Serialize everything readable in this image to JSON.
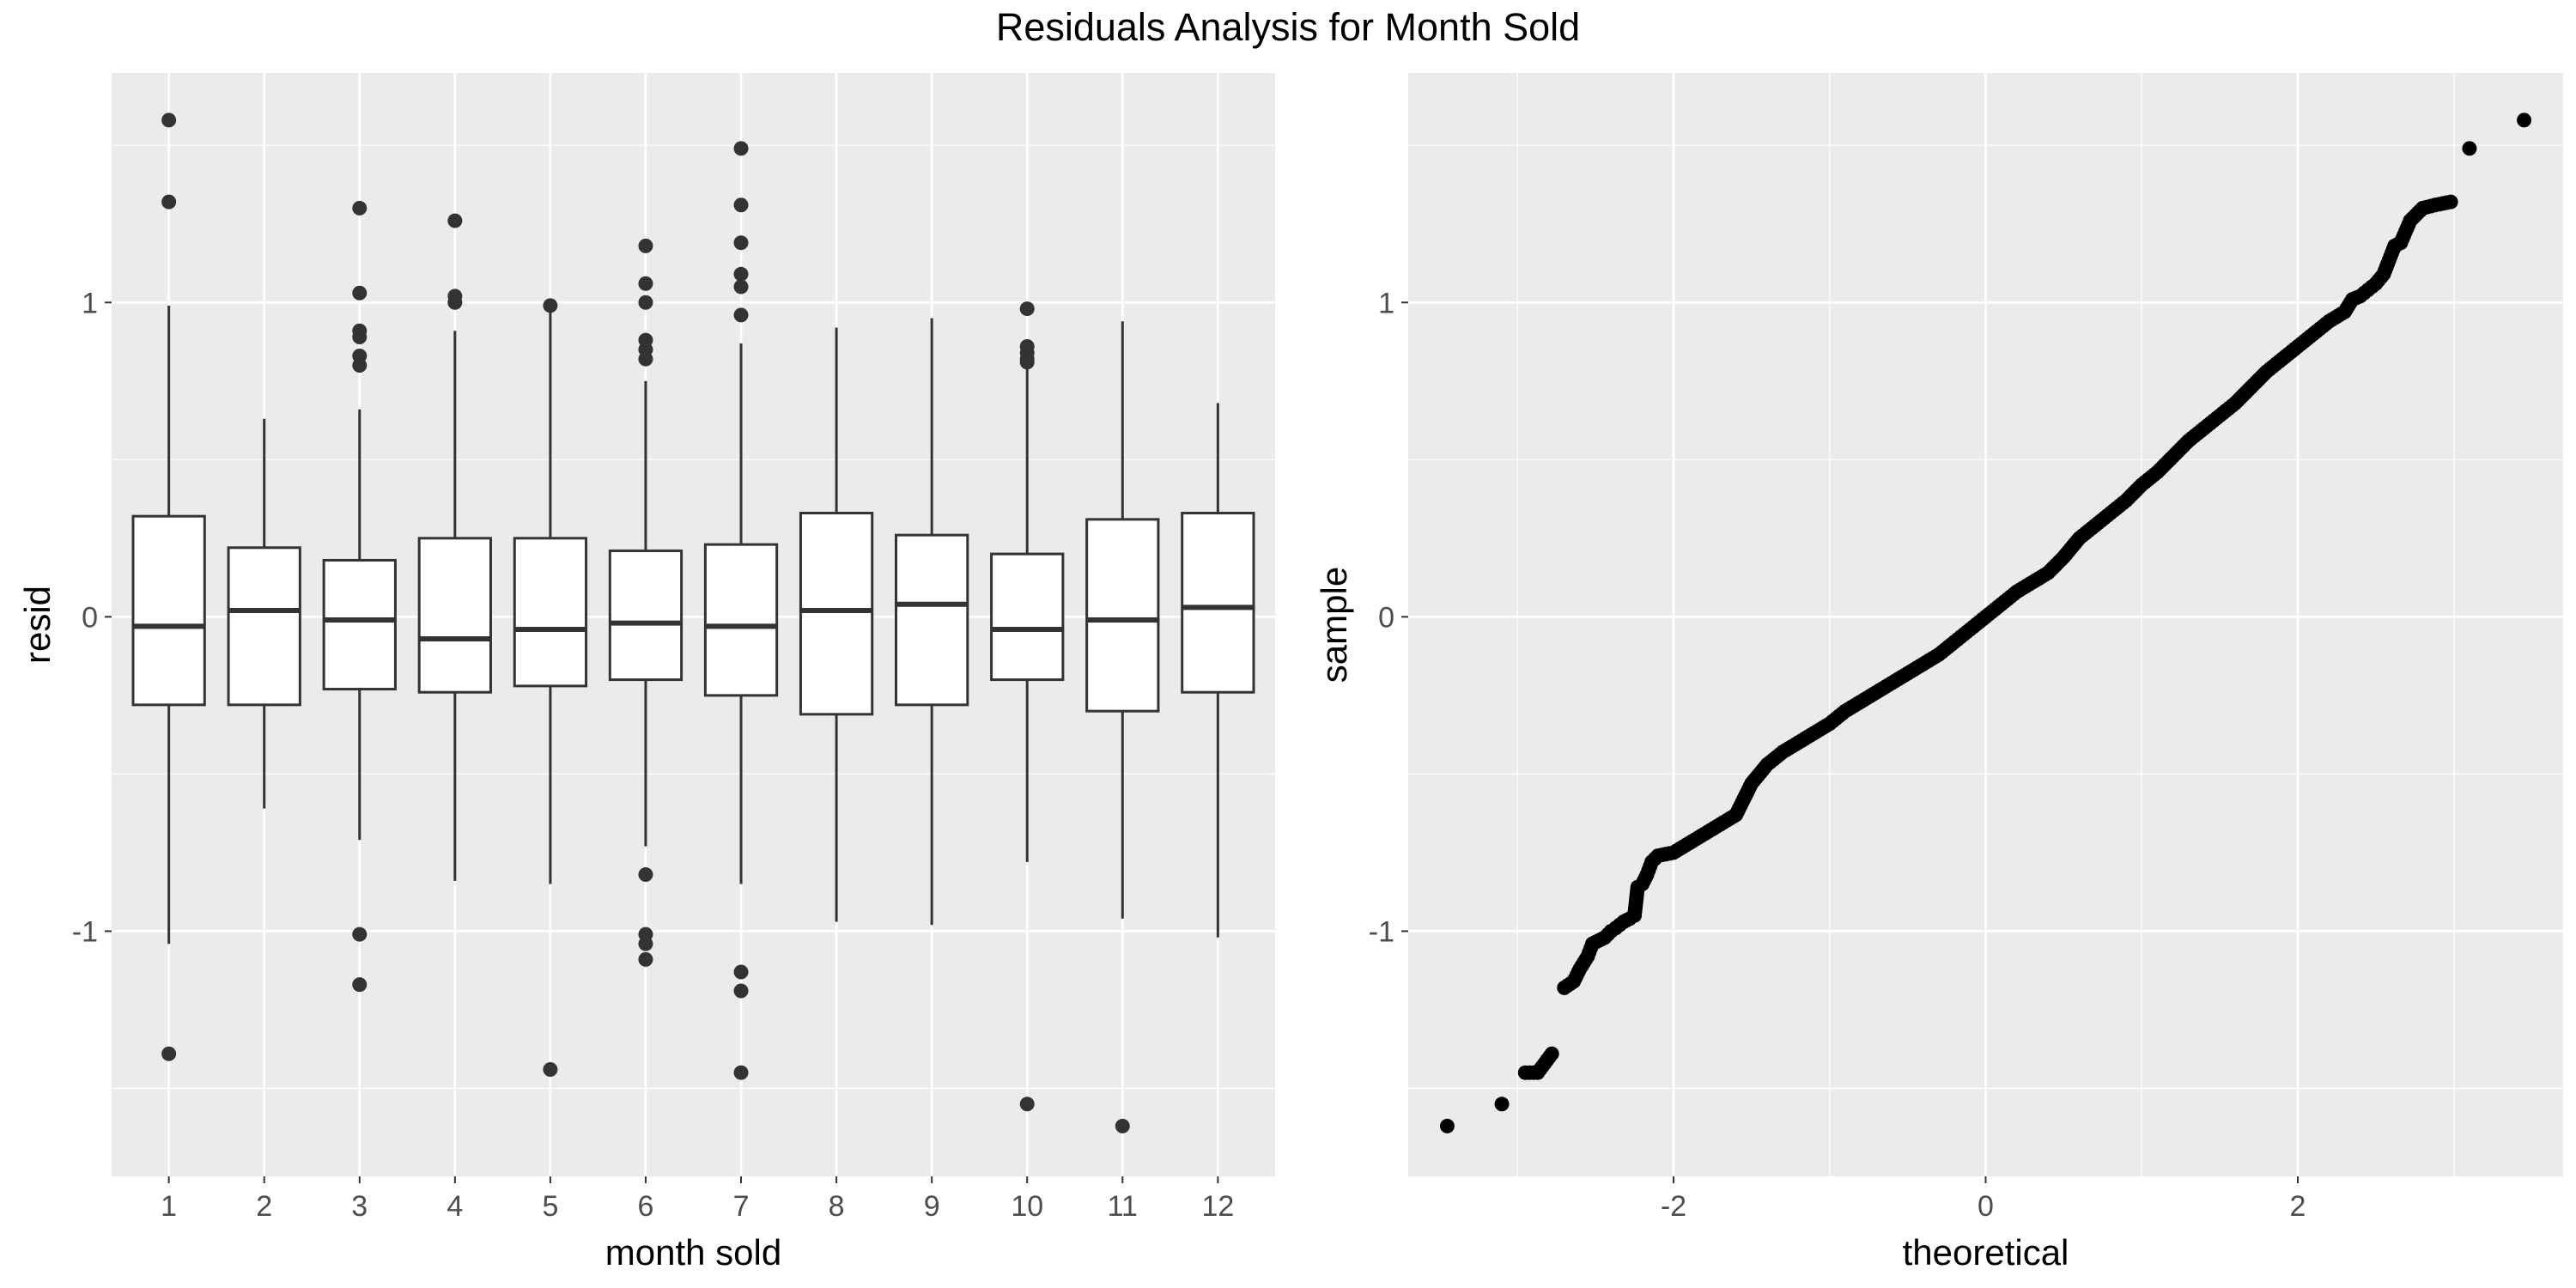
{
  "figure_title": "Residuals Analysis for Month Sold",
  "colors": {
    "panel_bg": "#ebebeb",
    "grid": "#ffffff",
    "box_fill": "#ffffff",
    "box_line": "#333333",
    "point": "#000000",
    "outlier": "#333333",
    "tick_text": "#4d4d4d"
  },
  "chart_data": [
    {
      "type": "box",
      "title": "",
      "xlabel": "month sold",
      "ylabel": "resid",
      "categories": [
        "1",
        "2",
        "3",
        "4",
        "5",
        "6",
        "7",
        "8",
        "9",
        "10",
        "11",
        "12"
      ],
      "ylim": [
        -1.78,
        1.73
      ],
      "y_ticks": [
        -1,
        0,
        1
      ],
      "y_tick_labels": [
        "-1",
        "0",
        "1"
      ],
      "grid": true,
      "boxes": [
        {
          "month": "1",
          "q1": -0.28,
          "median": -0.03,
          "q3": 0.32,
          "lower_whisker": -1.04,
          "upper_whisker": 0.99,
          "outliers": [
            1.58,
            1.32,
            -1.39
          ]
        },
        {
          "month": "2",
          "q1": -0.28,
          "median": 0.02,
          "q3": 0.22,
          "lower_whisker": -0.61,
          "upper_whisker": 0.63,
          "outliers": []
        },
        {
          "month": "3",
          "q1": -0.23,
          "median": -0.01,
          "q3": 0.18,
          "lower_whisker": -0.71,
          "upper_whisker": 0.66,
          "outliers": [
            1.3,
            1.03,
            0.91,
            0.89,
            0.83,
            0.8,
            -1.01,
            -1.17
          ]
        },
        {
          "month": "4",
          "q1": -0.24,
          "median": -0.07,
          "q3": 0.25,
          "lower_whisker": -0.84,
          "upper_whisker": 0.91,
          "outliers": [
            1.26,
            1.02,
            1.0
          ]
        },
        {
          "month": "5",
          "q1": -0.22,
          "median": -0.04,
          "q3": 0.25,
          "lower_whisker": -0.85,
          "upper_whisker": 0.97,
          "outliers": [
            0.99,
            -1.44
          ]
        },
        {
          "month": "6",
          "q1": -0.2,
          "median": -0.02,
          "q3": 0.21,
          "lower_whisker": -0.73,
          "upper_whisker": 0.75,
          "outliers": [
            1.18,
            1.06,
            1.0,
            0.88,
            0.85,
            0.82,
            -0.82,
            -1.01,
            -1.04,
            -1.09
          ]
        },
        {
          "month": "7",
          "q1": -0.25,
          "median": -0.03,
          "q3": 0.23,
          "lower_whisker": -0.85,
          "upper_whisker": 0.87,
          "outliers": [
            1.49,
            1.31,
            1.19,
            1.09,
            1.05,
            0.96,
            -1.13,
            -1.19,
            -1.45
          ]
        },
        {
          "month": "8",
          "q1": -0.31,
          "median": 0.02,
          "q3": 0.33,
          "lower_whisker": -0.97,
          "upper_whisker": 0.92,
          "outliers": []
        },
        {
          "month": "9",
          "q1": -0.28,
          "median": 0.04,
          "q3": 0.26,
          "lower_whisker": -0.98,
          "upper_whisker": 0.95,
          "outliers": []
        },
        {
          "month": "10",
          "q1": -0.2,
          "median": -0.04,
          "q3": 0.2,
          "lower_whisker": -0.78,
          "upper_whisker": 0.8,
          "outliers": [
            0.98,
            0.86,
            0.84,
            0.82,
            0.81,
            -1.55
          ]
        },
        {
          "month": "11",
          "q1": -0.3,
          "median": -0.01,
          "q3": 0.31,
          "lower_whisker": -0.96,
          "upper_whisker": 0.94,
          "outliers": [
            -1.62
          ]
        },
        {
          "month": "12",
          "q1": -0.24,
          "median": 0.03,
          "q3": 0.33,
          "lower_whisker": -1.02,
          "upper_whisker": 0.68,
          "outliers": []
        }
      ]
    },
    {
      "type": "scatter",
      "title": "",
      "xlabel": "theoretical",
      "ylabel": "sample",
      "xlim": [
        -3.7,
        3.7
      ],
      "ylim": [
        -1.78,
        1.73
      ],
      "x_ticks": [
        -2,
        0,
        2
      ],
      "x_tick_labels": [
        "-2",
        "0",
        "2"
      ],
      "y_ticks": [
        -1,
        0,
        1
      ],
      "y_tick_labels": [
        "-1",
        "0",
        "1"
      ],
      "grid": true,
      "distribution": "normal",
      "n_points": 1460,
      "points": [
        [
          -3.45,
          -1.62
        ],
        [
          -3.1,
          -1.55
        ],
        [
          -2.95,
          -1.45
        ],
        [
          -2.87,
          -1.45
        ],
        [
          -2.78,
          -1.39
        ],
        [
          -2.7,
          -1.18
        ],
        [
          -2.64,
          -1.16
        ],
        [
          -2.6,
          -1.12
        ],
        [
          -2.55,
          -1.08
        ],
        [
          -2.52,
          -1.04
        ],
        [
          -2.48,
          -1.03
        ],
        [
          -2.44,
          -1.02
        ],
        [
          -2.4,
          -1.0
        ],
        [
          -2.37,
          -0.99
        ],
        [
          -2.32,
          -0.97
        ],
        [
          -2.28,
          -0.96
        ],
        [
          -2.25,
          -0.95
        ],
        [
          -2.23,
          -0.86
        ],
        [
          -2.2,
          -0.85
        ],
        [
          -2.17,
          -0.82
        ],
        [
          -2.14,
          -0.78
        ],
        [
          -2.1,
          -0.76
        ],
        [
          -2.0,
          -0.75
        ],
        [
          -1.9,
          -0.72
        ],
        [
          -1.8,
          -0.69
        ],
        [
          -1.7,
          -0.66
        ],
        [
          -1.6,
          -0.63
        ],
        [
          -1.55,
          -0.58
        ],
        [
          -1.5,
          -0.53
        ],
        [
          -1.4,
          -0.47
        ],
        [
          -1.3,
          -0.43
        ],
        [
          -1.2,
          -0.4
        ],
        [
          -1.1,
          -0.37
        ],
        [
          -1.0,
          -0.34
        ],
        [
          -0.9,
          -0.3
        ],
        [
          -0.8,
          -0.27
        ],
        [
          -0.7,
          -0.24
        ],
        [
          -0.6,
          -0.21
        ],
        [
          -0.5,
          -0.18
        ],
        [
          -0.4,
          -0.15
        ],
        [
          -0.3,
          -0.12
        ],
        [
          -0.2,
          -0.08
        ],
        [
          -0.1,
          -0.04
        ],
        [
          0.0,
          0.0
        ],
        [
          0.1,
          0.04
        ],
        [
          0.2,
          0.08
        ],
        [
          0.3,
          0.11
        ],
        [
          0.4,
          0.14
        ],
        [
          0.5,
          0.19
        ],
        [
          0.6,
          0.25
        ],
        [
          0.7,
          0.29
        ],
        [
          0.8,
          0.33
        ],
        [
          0.9,
          0.37
        ],
        [
          1.0,
          0.42
        ],
        [
          1.1,
          0.46
        ],
        [
          1.2,
          0.51
        ],
        [
          1.3,
          0.56
        ],
        [
          1.4,
          0.6
        ],
        [
          1.5,
          0.64
        ],
        [
          1.6,
          0.68
        ],
        [
          1.7,
          0.73
        ],
        [
          1.8,
          0.78
        ],
        [
          1.9,
          0.82
        ],
        [
          2.0,
          0.86
        ],
        [
          2.1,
          0.9
        ],
        [
          2.2,
          0.94
        ],
        [
          2.3,
          0.97
        ],
        [
          2.35,
          1.01
        ],
        [
          2.4,
          1.02
        ],
        [
          2.45,
          1.04
        ],
        [
          2.5,
          1.06
        ],
        [
          2.55,
          1.09
        ],
        [
          2.62,
          1.18
        ],
        [
          2.66,
          1.19
        ],
        [
          2.72,
          1.26
        ],
        [
          2.8,
          1.3
        ],
        [
          2.88,
          1.31
        ],
        [
          2.98,
          1.32
        ],
        [
          3.1,
          1.49
        ],
        [
          3.45,
          1.58
        ]
      ]
    }
  ]
}
